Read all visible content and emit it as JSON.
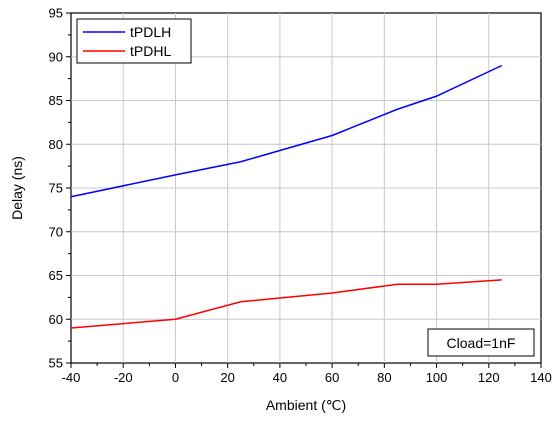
{
  "chart_data": {
    "type": "line",
    "xlabel": "Ambient (℃)",
    "ylabel": "Delay (ns)",
    "xlim": [
      -40,
      140
    ],
    "ylim": [
      55,
      95
    ],
    "xticks": [
      -40,
      -20,
      0,
      20,
      40,
      60,
      80,
      100,
      120,
      140
    ],
    "yticks": [
      55,
      60,
      65,
      70,
      75,
      80,
      85,
      90,
      95
    ],
    "grid": true,
    "legend_position": "top-left",
    "annotation": "Cload=1nF",
    "annotation_position": "bottom-right",
    "series": [
      {
        "name": "tPDLH",
        "color": "#0000ff",
        "x": [
          -40,
          0,
          25,
          60,
          85,
          100,
          125
        ],
        "y": [
          74,
          76.5,
          78,
          81,
          84,
          85.5,
          89
        ]
      },
      {
        "name": "tPDHL",
        "color": "#ff0000",
        "x": [
          -40,
          0,
          25,
          60,
          85,
          100,
          125
        ],
        "y": [
          59,
          60,
          62,
          63,
          64,
          64,
          64.5
        ]
      }
    ]
  }
}
